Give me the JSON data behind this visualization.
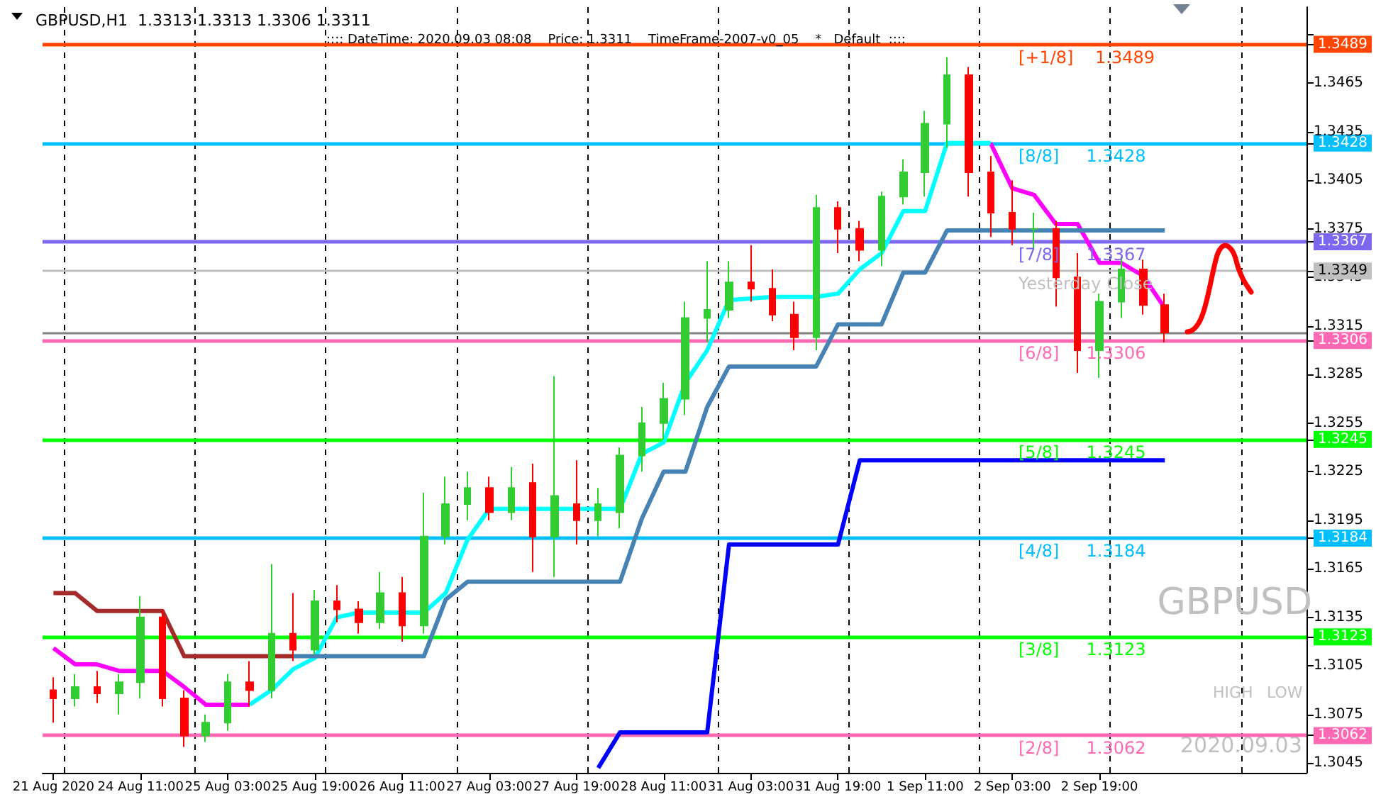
{
  "chart_data": {
    "type": "candlestick",
    "title": "GBPUSD,H1  1.3313 1.3313 1.3306 1.3311",
    "subtitle": ":::: DateTime: 2020.09.03 08:08    Price: 1.3311    TimeFrame-2007-v0_05    *   Default  ::::",
    "categories": [
      "21 Aug 2020",
      null,
      null,
      null,
      "24 Aug 11:00",
      null,
      null,
      null,
      "25 Aug 03:00",
      null,
      null,
      null,
      "25 Aug 19:00",
      null,
      null,
      null,
      "26 Aug 11:00",
      null,
      null,
      null,
      "27 Aug 03:00",
      null,
      null,
      null,
      "27 Aug 19:00",
      null,
      null,
      null,
      "28 Aug 11:00",
      null,
      null,
      null,
      "31 Aug 03:00",
      null,
      null,
      null,
      "31 Aug 19:00",
      null,
      null,
      null,
      "1 Sep 11:00",
      null,
      null,
      null,
      "2 Sep 03:00",
      null,
      null,
      null,
      "2 Sep 19:00",
      null,
      null,
      null,
      null,
      null,
      null,
      null,
      null,
      null
    ],
    "ohlc": [
      [
        1.309,
        1.3098,
        1.307,
        1.3085
      ],
      [
        1.3085,
        1.31,
        1.308,
        1.3092
      ],
      [
        1.3092,
        1.3102,
        1.3082,
        1.3088
      ],
      [
        1.3088,
        1.31,
        1.3075,
        1.3095
      ],
      [
        1.3095,
        1.3148,
        1.3085,
        1.3135
      ],
      [
        1.3135,
        1.314,
        1.308,
        1.3085
      ],
      [
        1.3085,
        1.309,
        1.3055,
        1.3062
      ],
      [
        1.3062,
        1.3075,
        1.3058,
        1.307
      ],
      [
        1.307,
        1.31,
        1.3065,
        1.3095
      ],
      [
        1.3095,
        1.3108,
        1.308,
        1.309
      ],
      [
        1.309,
        1.3168,
        1.3085,
        1.3125
      ],
      [
        1.3125,
        1.315,
        1.3108,
        1.3115
      ],
      [
        1.3115,
        1.3152,
        1.3112,
        1.3145
      ],
      [
        1.3145,
        1.3155,
        1.3132,
        1.314
      ],
      [
        1.314,
        1.3145,
        1.3125,
        1.3132
      ],
      [
        1.3132,
        1.3163,
        1.3128,
        1.315
      ],
      [
        1.315,
        1.316,
        1.312,
        1.313
      ],
      [
        1.313,
        1.3212,
        1.3125,
        1.3185
      ],
      [
        1.3185,
        1.3222,
        1.318,
        1.3205
      ],
      [
        1.3205,
        1.3225,
        1.3195,
        1.3215
      ],
      [
        1.3215,
        1.3222,
        1.3195,
        1.32
      ],
      [
        1.32,
        1.3228,
        1.3195,
        1.3215
      ],
      [
        1.3218,
        1.323,
        1.3163,
        1.3185
      ],
      [
        1.3185,
        1.3284,
        1.316,
        1.321
      ],
      [
        1.3205,
        1.3232,
        1.318,
        1.3195
      ],
      [
        1.3195,
        1.3215,
        1.3185,
        1.3205
      ],
      [
        1.32,
        1.324,
        1.319,
        1.3235
      ],
      [
        1.3235,
        1.3265,
        1.3225,
        1.3255
      ],
      [
        1.3255,
        1.328,
        1.3245,
        1.327
      ],
      [
        1.327,
        1.333,
        1.326,
        1.332
      ],
      [
        1.332,
        1.3355,
        1.3305,
        1.3325
      ],
      [
        1.3325,
        1.3355,
        1.332,
        1.3342
      ],
      [
        1.3342,
        1.3365,
        1.333,
        1.3338
      ],
      [
        1.3338,
        1.335,
        1.3318,
        1.3322
      ],
      [
        1.3322,
        1.333,
        1.33,
        1.3308
      ],
      [
        1.3308,
        1.3396,
        1.33,
        1.3388
      ],
      [
        1.3388,
        1.3392,
        1.336,
        1.3375
      ],
      [
        1.3375,
        1.338,
        1.3355,
        1.3362
      ],
      [
        1.3362,
        1.3398,
        1.3352,
        1.3395
      ],
      [
        1.3395,
        1.3418,
        1.339,
        1.341
      ],
      [
        1.341,
        1.3448,
        1.3395,
        1.344
      ],
      [
        1.344,
        1.3481,
        1.3425,
        1.347
      ],
      [
        1.347,
        1.3475,
        1.3395,
        1.341
      ],
      [
        1.341,
        1.342,
        1.337,
        1.3385
      ],
      [
        1.3385,
        1.3405,
        1.3365,
        1.3375
      ],
      [
        1.3375,
        1.3385,
        1.3362,
        1.3375
      ],
      [
        1.3375,
        1.338,
        1.3327,
        1.3345
      ],
      [
        1.3345,
        1.336,
        1.3286,
        1.33
      ],
      [
        1.33,
        1.3335,
        1.3283,
        1.333
      ],
      [
        1.333,
        1.3358,
        1.332,
        1.335
      ],
      [
        1.335,
        1.3356,
        1.3322,
        1.3328
      ],
      [
        1.3328,
        1.3335,
        1.3305,
        1.3311
      ],
      null,
      null,
      null,
      null,
      null,
      null
    ],
    "series": [
      {
        "type": "line",
        "color": "#a52a2a",
        "values": [
          1.315,
          1.315,
          1.3139,
          1.3139,
          1.3139,
          1.3139,
          1.3111,
          1.3111,
          1.3111,
          1.3111,
          1.3111,
          1.3111,
          null,
          null,
          null,
          null,
          null,
          null,
          null,
          null,
          null,
          null,
          null,
          null,
          null,
          null,
          null,
          null,
          null,
          null,
          null,
          null,
          null,
          null,
          null,
          null,
          null,
          null,
          null,
          null,
          null,
          null,
          null,
          null,
          null,
          null,
          null,
          null,
          null,
          null,
          null,
          null,
          null,
          null,
          null,
          null,
          null,
          null
        ]
      },
      {
        "type": "line",
        "color": "#ff00ff",
        "values": [
          1.3116,
          1.3106,
          1.3106,
          1.3102,
          1.3102,
          1.3102,
          1.3092,
          1.3081,
          1.3081,
          1.3081,
          null,
          null,
          null,
          null,
          null,
          null,
          null,
          null,
          null,
          null,
          null,
          null,
          null,
          null,
          null,
          null,
          null,
          null,
          null,
          null,
          null,
          null,
          null,
          null,
          null,
          null,
          null,
          null,
          null,
          null,
          null,
          null,
          null,
          1.3428,
          1.34,
          1.3396,
          1.3378,
          1.3378,
          1.3354,
          1.3354,
          1.3346,
          1.3326,
          null,
          null,
          null,
          null,
          null,
          null
        ]
      },
      {
        "type": "line",
        "color": "#00ffff",
        "values": [
          null,
          null,
          null,
          null,
          null,
          null,
          null,
          null,
          null,
          1.3081,
          1.309,
          1.3103,
          1.311,
          1.3135,
          1.3138,
          1.3138,
          1.3138,
          1.3138,
          1.315,
          1.3183,
          1.3202,
          1.3202,
          1.3202,
          1.3202,
          1.3202,
          1.3202,
          1.3202,
          1.3236,
          1.3243,
          1.328,
          1.33,
          1.3331,
          1.3332,
          1.3333,
          1.3333,
          1.3333,
          1.3335,
          1.335,
          1.336,
          1.3386,
          1.3386,
          1.3428,
          1.3428,
          1.3428,
          null,
          null,
          null,
          null,
          null,
          null,
          null,
          null,
          null,
          null,
          null,
          null,
          null,
          null
        ]
      },
      {
        "type": "line",
        "color": "#4682b4",
        "values": [
          null,
          null,
          null,
          null,
          null,
          null,
          null,
          null,
          null,
          null,
          null,
          1.3111,
          1.3111,
          1.3111,
          1.3111,
          1.3111,
          1.3111,
          1.3111,
          1.3146,
          1.3157,
          1.3157,
          1.3157,
          1.3157,
          1.3157,
          1.3157,
          1.3157,
          1.3157,
          1.3196,
          1.3225,
          1.3225,
          1.3265,
          1.329,
          1.329,
          1.329,
          1.329,
          1.329,
          1.3316,
          1.3316,
          1.3316,
          1.3348,
          1.3348,
          1.3374,
          1.3374,
          1.3374,
          1.3374,
          1.3374,
          1.3374,
          1.3374,
          1.3374,
          1.3374,
          1.3374,
          1.3374,
          null,
          null,
          null,
          null,
          null,
          null
        ]
      },
      {
        "type": "line",
        "color": "#0000ff",
        "values": [
          null,
          null,
          null,
          null,
          null,
          null,
          null,
          null,
          null,
          null,
          null,
          null,
          null,
          null,
          null,
          null,
          null,
          null,
          null,
          null,
          null,
          null,
          null,
          null,
          null,
          1.3042,
          1.3064,
          1.3064,
          1.3064,
          1.3064,
          1.3064,
          1.318,
          1.318,
          1.318,
          1.318,
          1.318,
          1.318,
          1.3232,
          1.3232,
          1.3232,
          1.3232,
          1.3232,
          1.3232,
          1.3232,
          1.3232,
          1.3232,
          1.3232,
          1.3232,
          1.3232,
          1.3232,
          1.3232,
          1.3232,
          null,
          null,
          null,
          null,
          null,
          null
        ]
      }
    ],
    "ylim": [
      1.3039,
      1.3512
    ],
    "yticks": [
      1.3045,
      {
        "value": 1.3062,
        "label": "1.3062"
      },
      1.3075,
      1.3105,
      {
        "value": 1.3123,
        "label": "1.3123"
      },
      1.3135,
      1.3165,
      {
        "value": 1.3184,
        "label": "1.3184"
      },
      1.3195,
      1.3225,
      {
        "value": 1.3245,
        "label": "1.3245"
      },
      1.3255,
      1.3285,
      {
        "value": 1.3306,
        "label": "1.3306"
      },
      1.3315,
      1.3345,
      {
        "value": 1.3349,
        "label": "1.3349"
      },
      {
        "value": 1.3367,
        "label": "1.3367"
      },
      1.3375,
      1.3405,
      {
        "value": 1.3428,
        "label": "1.3428"
      },
      1.3435,
      1.3465,
      {
        "value": 1.3489,
        "label": "1.3489"
      },
      {
        "value": 1.3495,
        "label": null
      }
    ],
    "grid": "x",
    "marker": "none",
    "ref_lines": [
      {
        "axis": "y",
        "value": 1.3489,
        "label": "[+1/8]    1.3489",
        "color": "#ff4500"
      },
      {
        "axis": "y",
        "value": 1.3428,
        "label": "[8/8]     1.3428",
        "color": "#00bfff"
      },
      {
        "axis": "y",
        "value": 1.3367,
        "label": "[7/8]     1.3367",
        "color": "#7b68ee"
      },
      {
        "axis": "y",
        "value": 1.3349,
        "label": "Yesterday Close",
        "color": "#c0c0c0"
      },
      {
        "axis": "y",
        "value": 1.3311,
        "label": null,
        "color": "#808080"
      },
      {
        "axis": "y",
        "value": 1.3306,
        "label": "[6/8]     1.3306",
        "color": "#ff69b4"
      },
      {
        "axis": "y",
        "value": 1.3245,
        "label": "[5/8]     1.3245",
        "color": "#00ff00"
      },
      {
        "axis": "y",
        "value": 1.3184,
        "label": "[4/8]     1.3184",
        "color": "#00bfff"
      },
      {
        "axis": "y",
        "value": 1.3123,
        "label": "[3/8]     1.3123",
        "color": "#00ff00"
      },
      {
        "axis": "y",
        "value": 1.3062,
        "label": "[2/8]     1.3062",
        "color": "#ff69b4"
      }
    ],
    "annotations": [
      "GBPUSD",
      "HIGH",
      "LOW",
      "2020.09.03"
    ]
  }
}
